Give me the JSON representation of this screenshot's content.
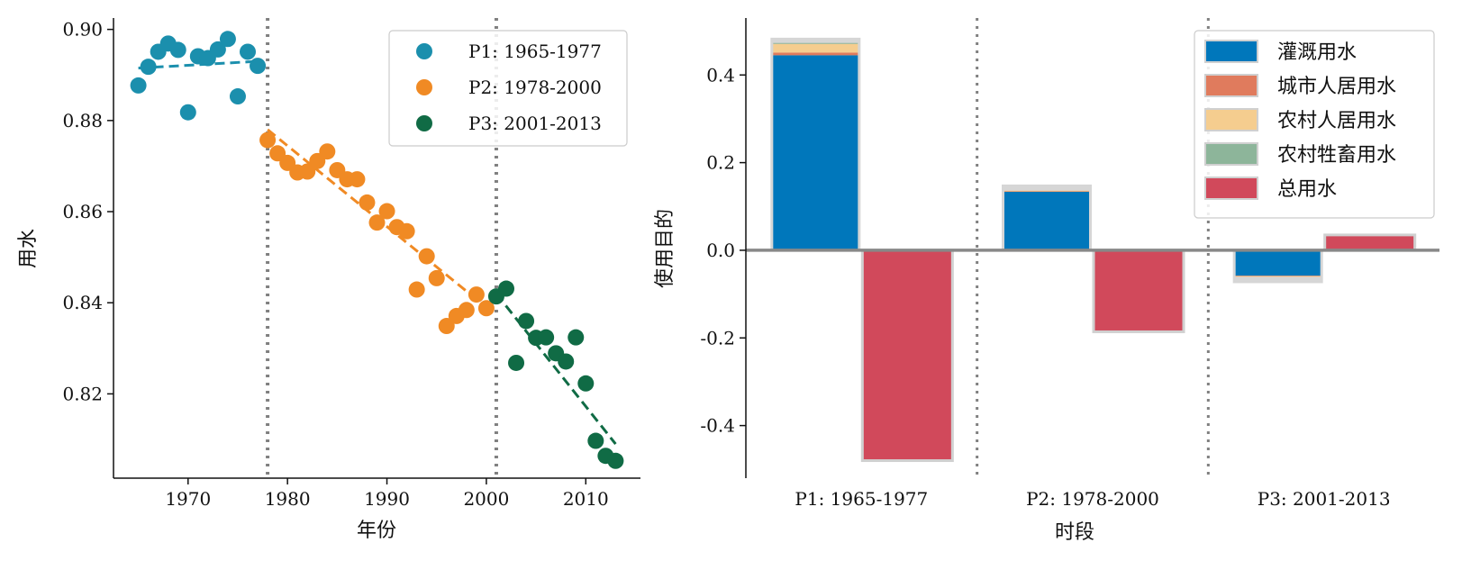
{
  "chart_data": [
    {
      "type": "scatter",
      "xlabel": "年份",
      "ylabel": "用水",
      "xlim": [
        1962.5,
        2015.5
      ],
      "ylim": [
        0.8015,
        0.9025
      ],
      "xticks": [
        1970,
        1980,
        1990,
        2000,
        2010
      ],
      "xtick_labels": [
        "1970",
        "1980",
        "1990",
        "2000",
        "2010"
      ],
      "yticks": [
        0.82,
        0.84,
        0.86,
        0.88,
        0.9
      ],
      "ytick_labels": [
        "0.82",
        "0.84",
        "0.86",
        "0.88",
        "0.90"
      ],
      "breakpoints": [
        1978,
        2001
      ],
      "legend_position": "top-right",
      "grid": false,
      "series": [
        {
          "name": "P1: 1965-1977",
          "color": "#1b8fad",
          "x": [
            1965,
            1966,
            1967,
            1968,
            1969,
            1970,
            1971,
            1972,
            1973,
            1974,
            1975,
            1976,
            1977
          ],
          "y": [
            0.8877,
            0.8918,
            0.8951,
            0.8969,
            0.8955,
            0.8818,
            0.8941,
            0.8937,
            0.8956,
            0.8979,
            0.8853,
            0.8951,
            0.892
          ],
          "trend": [
            [
              1965,
              0.8915
            ],
            [
              1977,
              0.893
            ]
          ]
        },
        {
          "name": "P2: 1978-2000",
          "color": "#f08a24",
          "x": [
            1978,
            1979,
            1980,
            1981,
            1982,
            1983,
            1984,
            1985,
            1986,
            1987,
            1988,
            1989,
            1990,
            1991,
            1992,
            1993,
            1994,
            1995,
            1996,
            1997,
            1998,
            1999,
            2000
          ],
          "y": [
            0.8757,
            0.8728,
            0.8707,
            0.8686,
            0.8688,
            0.8711,
            0.8732,
            0.8691,
            0.8671,
            0.8671,
            0.862,
            0.8576,
            0.8601,
            0.8566,
            0.8557,
            0.8429,
            0.8502,
            0.8454,
            0.8349,
            0.8371,
            0.8384,
            0.8418,
            0.8388
          ],
          "trend": [
            [
              1978,
              0.878
            ],
            [
              2000,
              0.839
            ]
          ]
        },
        {
          "name": "P3: 2001-2013",
          "color": "#106b45",
          "x": [
            2001,
            2002,
            2003,
            2004,
            2005,
            2006,
            2007,
            2008,
            2009,
            2010,
            2011,
            2012,
            2013
          ],
          "y": [
            0.8414,
            0.8431,
            0.8268,
            0.836,
            0.8323,
            0.8324,
            0.8289,
            0.8271,
            0.8324,
            0.8223,
            0.8097,
            0.8064,
            0.8053
          ],
          "trend": [
            [
              2001,
              0.842
            ],
            [
              2013,
              0.809
            ]
          ]
        }
      ]
    },
    {
      "type": "bar",
      "xlabel": "时段",
      "ylabel": "使用目的",
      "ylim": [
        -0.52,
        0.53
      ],
      "yticks": [
        -0.4,
        -0.2,
        0.0,
        0.2,
        0.4
      ],
      "ytick_labels": [
        "-0.4",
        "-0.2",
        "0.0",
        "0.2",
        "0.4"
      ],
      "categories": [
        "P1: 1965-1977",
        "P2: 1978-2000",
        "P3: 2001-2013"
      ],
      "legend_position": "top-right",
      "grid": false,
      "series": [
        {
          "name": "灌溉用水",
          "color": "#0077bb",
          "values": [
            0.445,
            0.134,
            -0.058
          ]
        },
        {
          "name": "城市人居用水",
          "color": "#e07b5d",
          "values": [
            0.006,
            0.001,
            -0.001
          ]
        },
        {
          "name": "农村人居用水",
          "color": "#f5cd8f",
          "values": [
            0.02,
            0.001,
            -0.001
          ]
        },
        {
          "name": "农村牲畜用水",
          "color": "#8db59a",
          "values": [
            0.002,
            0.0,
            0.0
          ]
        },
        {
          "name": "总用水",
          "color": "#d1495b",
          "values": [
            -0.48,
            -0.186,
            0.035
          ]
        }
      ],
      "envelope": [
        0.485,
        0.15,
        -0.075
      ]
    }
  ]
}
